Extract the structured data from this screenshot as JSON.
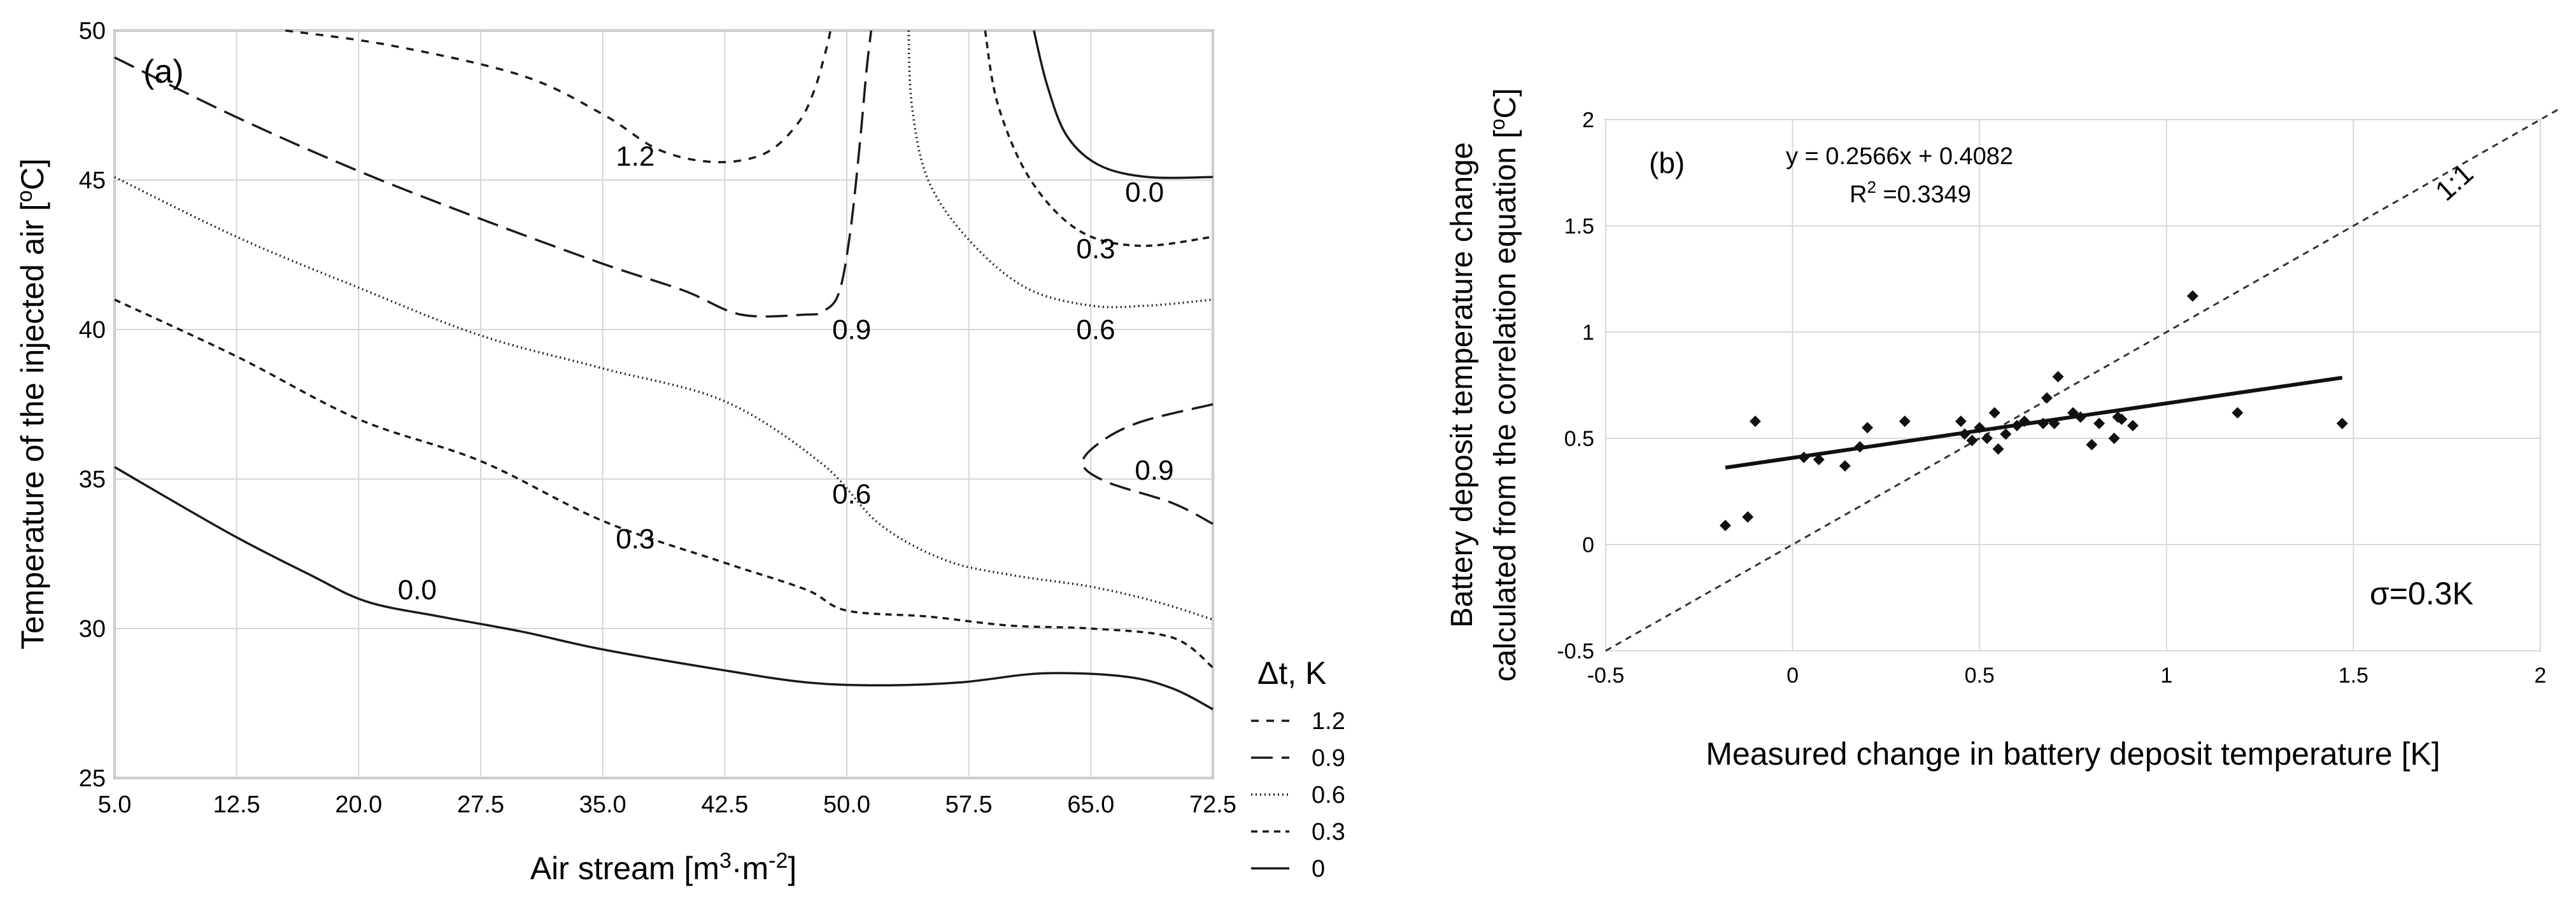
{
  "chart_data": [
    {
      "id": "a",
      "type": "contour",
      "panel_label": "(a)",
      "xlabel_parts": [
        "Air stream [m",
        "3",
        "·m",
        "-2",
        "]"
      ],
      "ylabel_parts": [
        "Temperature of the injected air [",
        "o",
        "C]"
      ],
      "xlim": [
        5.0,
        72.5
      ],
      "ylim": [
        25,
        50
      ],
      "x_ticks": [
        "5.0",
        "12.5",
        "20.0",
        "27.5",
        "35.0",
        "42.5",
        "50.0",
        "57.5",
        "65.0",
        "72.5"
      ],
      "x_tick_values": [
        5.0,
        12.5,
        20.0,
        27.5,
        35.0,
        42.5,
        50.0,
        57.5,
        65.0,
        72.5
      ],
      "y_ticks": [
        "25",
        "30",
        "35",
        "40",
        "45",
        "50"
      ],
      "y_tick_values": [
        25,
        30,
        35,
        40,
        45,
        50
      ],
      "grid": true,
      "legend": {
        "title": "Δt, K",
        "position": "right-bottom",
        "entries": [
          {
            "label": "1.2",
            "level": "1.2"
          },
          {
            "label": "0.9",
            "level": "0.9"
          },
          {
            "label": "0.6",
            "level": "0.6"
          },
          {
            "label": "0.3",
            "level": "0.3"
          },
          {
            "label": "0",
            "level": "0"
          }
        ]
      },
      "styles": {
        "1.2": "12 12",
        "0.9": "34 14",
        "0.6": "2 5",
        "0.3": "10 8",
        "0": ""
      },
      "contours": [
        {
          "level": "0",
          "points": [
            [
              5.0,
              35.4
            ],
            [
              12,
              33.2
            ],
            [
              17,
              31.8
            ],
            [
              20.5,
              30.9
            ],
            [
              25,
              30.4
            ],
            [
              30,
              29.9
            ],
            [
              35,
              29.3
            ],
            [
              42.5,
              28.6
            ],
            [
              47.5,
              28.2
            ],
            [
              52,
              28.1
            ],
            [
              57,
              28.2
            ],
            [
              62,
              28.5
            ],
            [
              67,
              28.4
            ],
            [
              70,
              28.0
            ],
            [
              72.5,
              27.3
            ]
          ]
        },
        {
          "level": "0.3",
          "points": [
            [
              5.0,
              41.0
            ],
            [
              12.5,
              39.1
            ],
            [
              20,
              37.0
            ],
            [
              27.5,
              35.6
            ],
            [
              35,
              33.6
            ],
            [
              42.5,
              32.2
            ],
            [
              47.5,
              31.3
            ],
            [
              50,
              30.6
            ],
            [
              55,
              30.4
            ],
            [
              60,
              30.1
            ],
            [
              65,
              30.0
            ],
            [
              70,
              29.7
            ],
            [
              72.5,
              28.7
            ]
          ]
        },
        {
          "level": "0.6",
          "points": [
            [
              5.0,
              45.1
            ],
            [
              12.5,
              43.1
            ],
            [
              20,
              41.4
            ],
            [
              27.5,
              39.8
            ],
            [
              35,
              38.7
            ],
            [
              42.5,
              37.6
            ],
            [
              48.5,
              35.5
            ],
            [
              52,
              33.5
            ],
            [
              56,
              32.3
            ],
            [
              60,
              31.8
            ],
            [
              65,
              31.4
            ],
            [
              69,
              30.9
            ],
            [
              72.5,
              30.3
            ]
          ]
        },
        {
          "level": "0.9",
          "points": [
            [
              5.0,
              49.1
            ],
            [
              12.5,
              47.1
            ],
            [
              20,
              45.3
            ],
            [
              27.5,
              43.7
            ],
            [
              35,
              42.2
            ],
            [
              40,
              41.3
            ],
            [
              43.5,
              40.5
            ],
            [
              47.5,
              40.5
            ],
            [
              48.5,
              40.6
            ],
            [
              49.5,
              41.2
            ],
            [
              50.2,
              43.2
            ],
            [
              50.8,
              46.2
            ],
            [
              51.2,
              48.6
            ],
            [
              51.5,
              50.0
            ]
          ]
        },
        {
          "level": "1.2",
          "points": [
            [
              15.5,
              50.0
            ],
            [
              22,
              49.5
            ],
            [
              30,
              48.5
            ],
            [
              35,
              47.2
            ],
            [
              38.5,
              46.0
            ],
            [
              42,
              45.6
            ],
            [
              45,
              45.9
            ],
            [
              47,
              46.9
            ],
            [
              48,
              48.0
            ],
            [
              48.7,
              49.3
            ],
            [
              49.0,
              50.0
            ]
          ]
        },
        {
          "level": "0.9",
          "points": [
            [
              72.5,
              37.5
            ],
            [
              68,
              36.9
            ],
            [
              65.5,
              36.2
            ],
            [
              64.5,
              35.5
            ],
            [
              66,
              34.9
            ],
            [
              70,
              34.2
            ],
            [
              72.5,
              33.5
            ]
          ]
        },
        {
          "level": "0",
          "points": [
            [
              61.5,
              50.0
            ],
            [
              62.3,
              48.2
            ],
            [
              63.5,
              46.5
            ],
            [
              65.5,
              45.5
            ],
            [
              68.5,
              45.1
            ],
            [
              72.5,
              45.1
            ]
          ]
        },
        {
          "level": "0.3",
          "points": [
            [
              58.5,
              50.0
            ],
            [
              59.3,
              47.5
            ],
            [
              61.3,
              45.0
            ],
            [
              64.3,
              43.3
            ],
            [
              68,
              42.8
            ],
            [
              72.5,
              43.1
            ]
          ]
        },
        {
          "level": "0.6",
          "points": [
            [
              53.8,
              50.0
            ],
            [
              54.0,
              47.5
            ],
            [
              55.0,
              45.0
            ],
            [
              57.5,
              43.0
            ],
            [
              61,
              41.4
            ],
            [
              65,
              40.8
            ],
            [
              68.5,
              40.8
            ],
            [
              72.5,
              41.0
            ]
          ]
        }
      ],
      "contour_labels": [
        {
          "text": "1.2",
          "x": 37.0,
          "y": 45.8
        },
        {
          "text": "0.0",
          "x": 68.3,
          "y": 44.6
        },
        {
          "text": "0.3",
          "x": 65.3,
          "y": 42.7
        },
        {
          "text": "0.9",
          "x": 50.3,
          "y": 40.0
        },
        {
          "text": "0.6",
          "x": 65.3,
          "y": 40.0
        },
        {
          "text": "0.9",
          "x": 68.9,
          "y": 35.3
        },
        {
          "text": "0.6",
          "x": 50.3,
          "y": 34.5
        },
        {
          "text": "0.3",
          "x": 37.0,
          "y": 33.0
        },
        {
          "text": "0.0",
          "x": 23.6,
          "y": 31.3
        }
      ]
    },
    {
      "id": "b",
      "type": "scatter",
      "panel_label": "(b)",
      "xlabel": "Measured change in battery deposit temperature [K]",
      "ylabel_line1": "Battery deposit temperature change",
      "ylabel_line2_parts": [
        "calculated from the correlation equation [",
        "o",
        "C]"
      ],
      "xlim": [
        -0.5,
        2
      ],
      "ylim": [
        -0.5,
        2
      ],
      "x_ticks": [
        "-0.5",
        "0",
        "0.5",
        "1",
        "1.5",
        "2"
      ],
      "x_tick_values": [
        -0.5,
        0,
        0.5,
        1,
        1.5,
        2
      ],
      "y_ticks": [
        "-0.5",
        "0",
        "0.5",
        "1",
        "1.5",
        "2"
      ],
      "y_tick_values": [
        -0.5,
        0,
        0.5,
        1,
        1.5,
        2
      ],
      "grid": true,
      "equation": "y = 0.2566x + 0.4082",
      "r2_parts": [
        "R",
        "2",
        " =0.3349"
      ],
      "sigma_label": "σ=0.3K",
      "one_to_one_label": "1:1",
      "trendline": {
        "slope": 0.2566,
        "intercept": 0.4082,
        "x_range": [
          -0.18,
          1.47
        ]
      },
      "identity_line": {
        "x_range": [
          -0.5,
          2.05
        ]
      },
      "points": [
        [
          -0.18,
          0.09
        ],
        [
          -0.12,
          0.13
        ],
        [
          -0.1,
          0.58
        ],
        [
          0.03,
          0.41
        ],
        [
          0.07,
          0.4
        ],
        [
          0.14,
          0.37
        ],
        [
          0.18,
          0.46
        ],
        [
          0.2,
          0.55
        ],
        [
          0.3,
          0.58
        ],
        [
          0.45,
          0.58
        ],
        [
          0.46,
          0.52
        ],
        [
          0.48,
          0.49
        ],
        [
          0.5,
          0.55
        ],
        [
          0.52,
          0.5
        ],
        [
          0.54,
          0.62
        ],
        [
          0.55,
          0.45
        ],
        [
          0.57,
          0.52
        ],
        [
          0.6,
          0.56
        ],
        [
          0.62,
          0.58
        ],
        [
          0.67,
          0.57
        ],
        [
          0.68,
          0.69
        ],
        [
          0.7,
          0.57
        ],
        [
          0.71,
          0.79
        ],
        [
          0.75,
          0.62
        ],
        [
          0.77,
          0.6
        ],
        [
          0.8,
          0.47
        ],
        [
          0.82,
          0.57
        ],
        [
          0.86,
          0.5
        ],
        [
          0.87,
          0.6
        ],
        [
          0.88,
          0.59
        ],
        [
          0.91,
          0.56
        ],
        [
          1.07,
          1.17
        ],
        [
          1.19,
          0.62
        ],
        [
          1.47,
          0.57
        ]
      ]
    }
  ]
}
